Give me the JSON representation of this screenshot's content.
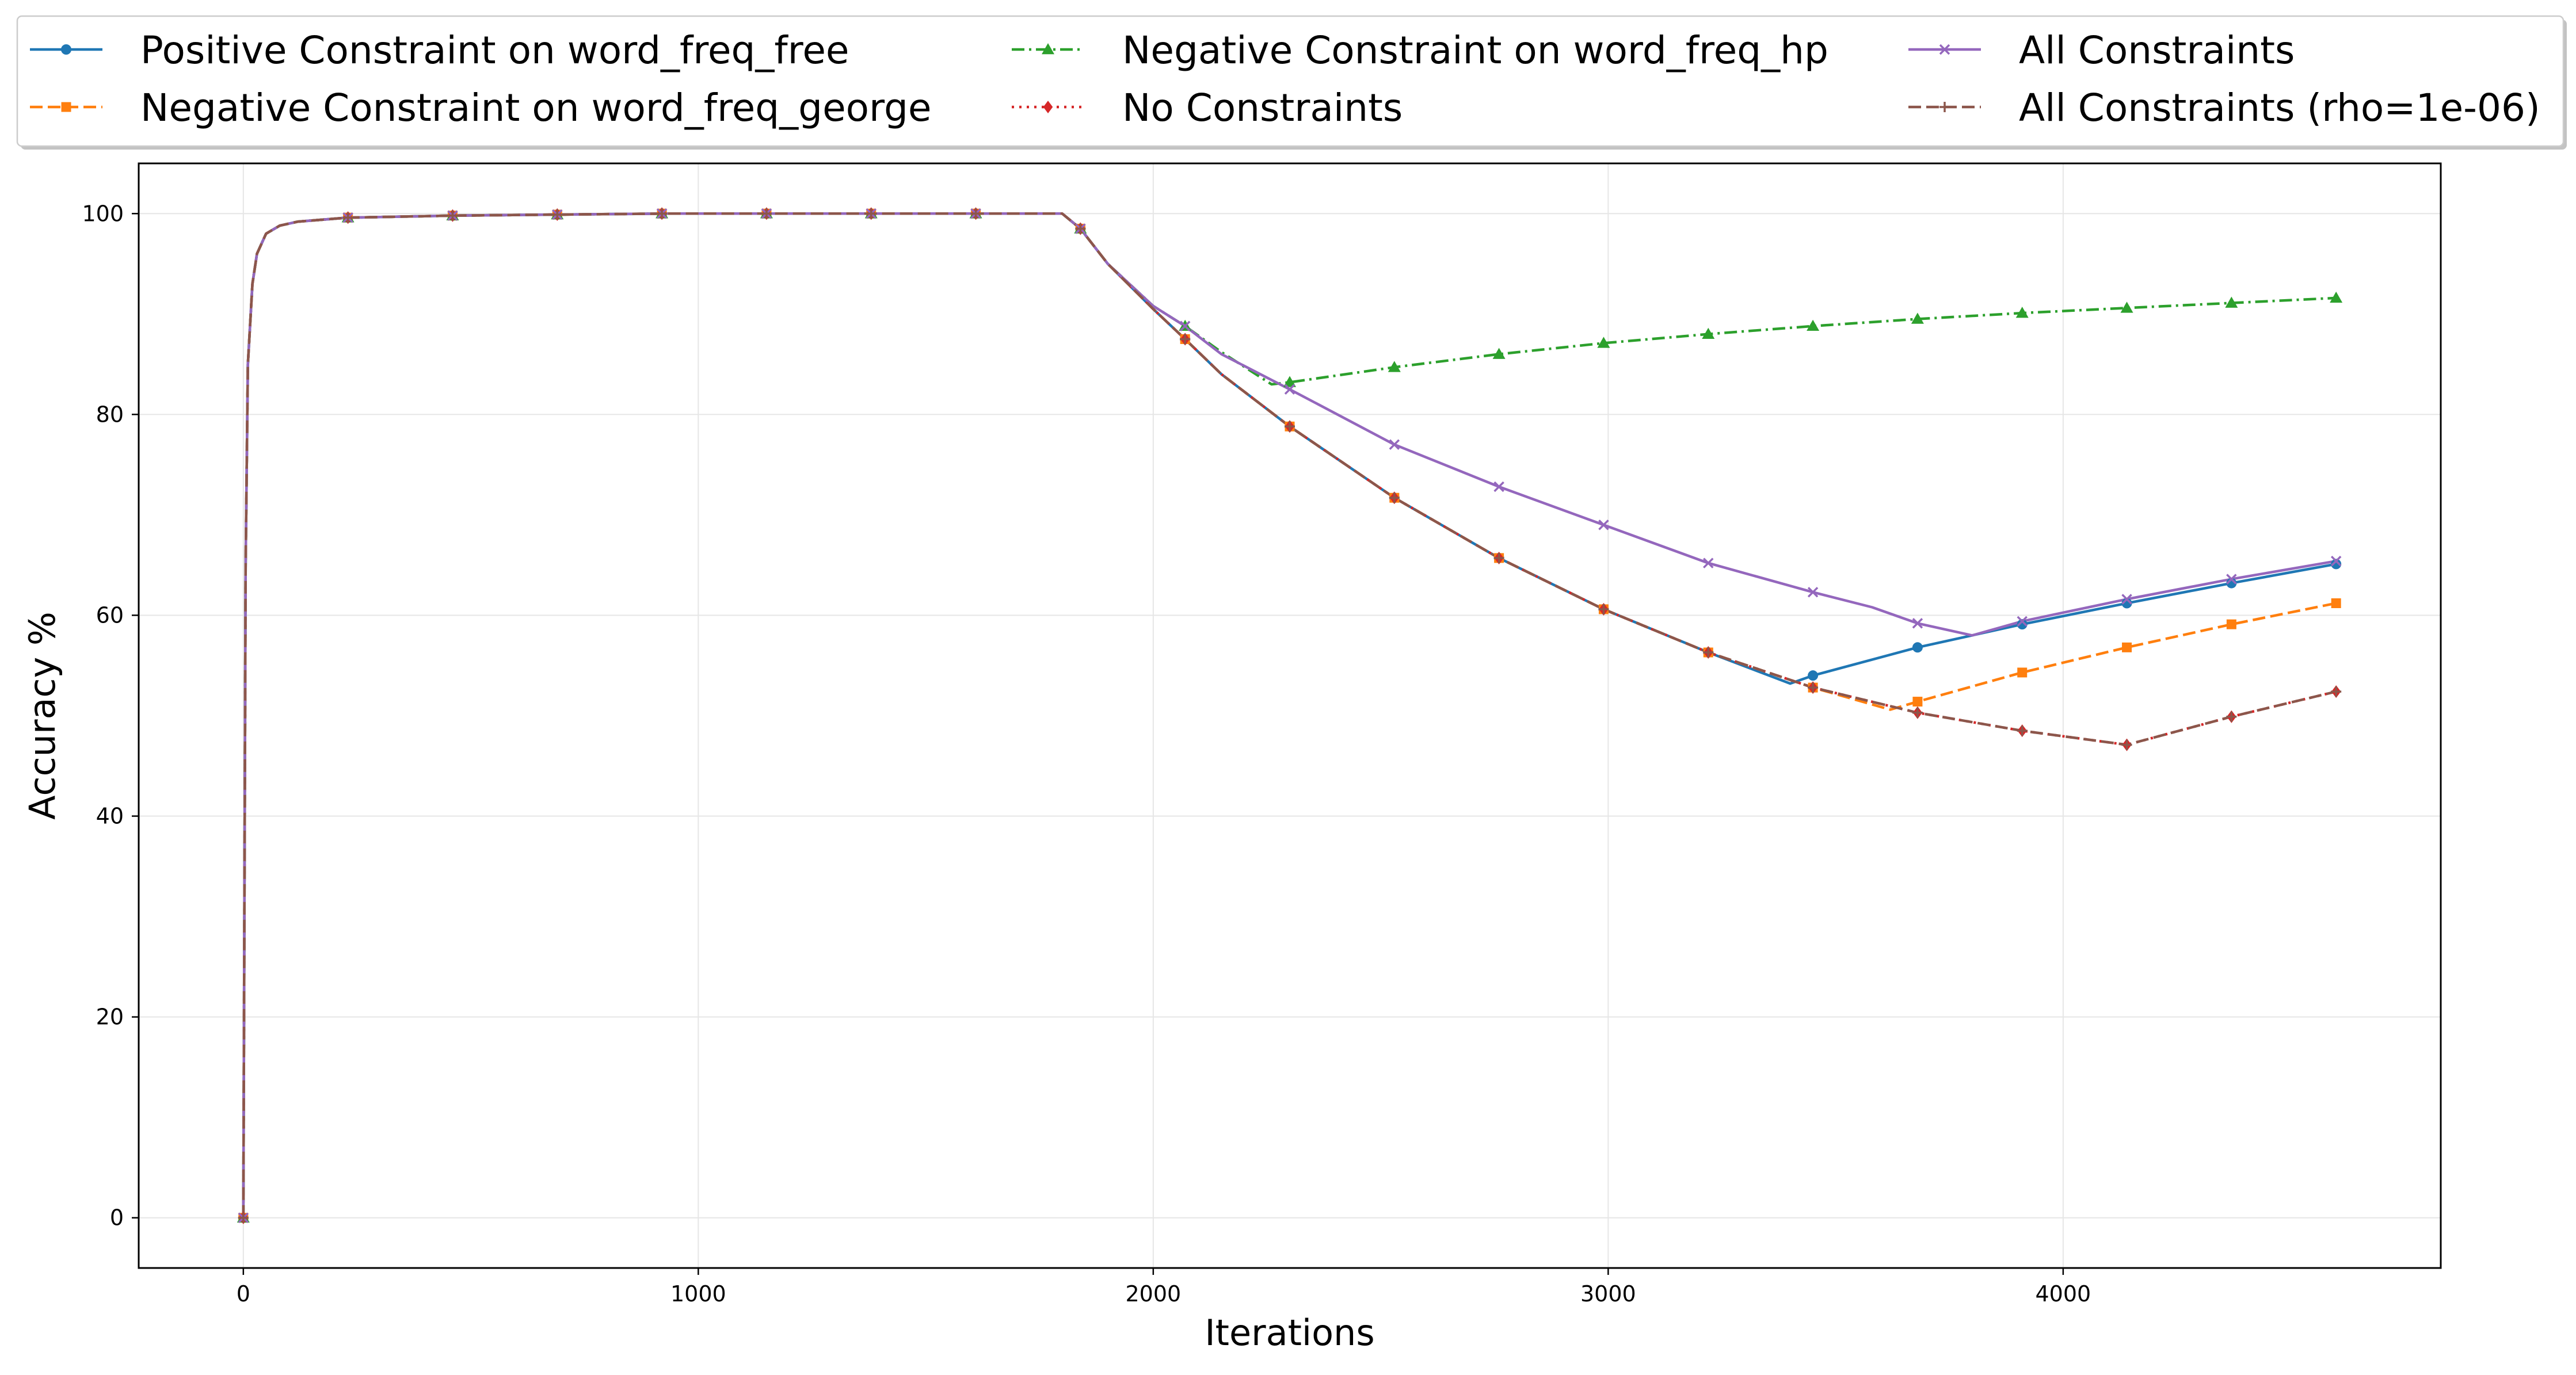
{
  "chart_data": {
    "type": "line",
    "xlabel": "Iterations",
    "ylabel": "Accuracy %",
    "xlim": [
      -230,
      4830
    ],
    "ylim": [
      -5,
      105
    ],
    "x_ticks": [
      0,
      1000,
      2000,
      3000,
      4000
    ],
    "y_ticks": [
      0,
      20,
      40,
      60,
      80,
      100
    ],
    "grid": true,
    "legend_placement": "top, outside plot, 4 columns",
    "series": [
      {
        "name": "Positive Constraint on word_freq_free",
        "color": "#1f77b4",
        "dash": "solid",
        "marker": "circle",
        "x": [
          0,
          5,
          10,
          20,
          30,
          50,
          80,
          120,
          230,
          460,
          690,
          920,
          1150,
          1380,
          1610,
          1800,
          1840,
          1900,
          2000,
          2070,
          2150,
          2300,
          2530,
          2760,
          2990,
          3220,
          3400,
          3450,
          3680,
          3910,
          4140,
          4370,
          4600
        ],
        "y": [
          0,
          65,
          85,
          93,
          96,
          98,
          98.8,
          99.2,
          99.6,
          99.8,
          99.9,
          100,
          100,
          100,
          100,
          100,
          98.5,
          95,
          90.5,
          87.5,
          84,
          78.8,
          71.7,
          65.7,
          60.6,
          56.3,
          53.2,
          54,
          56.8,
          59.1,
          61.2,
          63.2,
          65.1
        ]
      },
      {
        "name": "Negative Constraint on word_freq_george",
        "color": "#ff7f0e",
        "dash": "dashed",
        "marker": "square",
        "x": [
          0,
          5,
          10,
          20,
          30,
          50,
          80,
          120,
          230,
          460,
          690,
          920,
          1150,
          1380,
          1610,
          1800,
          1840,
          1900,
          2000,
          2070,
          2150,
          2300,
          2530,
          2760,
          2990,
          3220,
          3450,
          3620,
          3680,
          3910,
          4140,
          4370,
          4600
        ],
        "y": [
          0,
          65,
          85,
          93,
          96,
          98,
          98.8,
          99.2,
          99.6,
          99.8,
          99.9,
          100,
          100,
          100,
          100,
          100,
          98.5,
          95,
          90.5,
          87.5,
          84,
          78.8,
          71.7,
          65.7,
          60.6,
          56.3,
          52.8,
          50.6,
          51.4,
          54.3,
          56.8,
          59.1,
          61.2
        ]
      },
      {
        "name": "Negative Constraint on word_freq_hp",
        "color": "#2ca02c",
        "dash": "dashdot",
        "marker": "triangle",
        "x": [
          0,
          5,
          10,
          20,
          30,
          50,
          80,
          120,
          230,
          460,
          690,
          920,
          1150,
          1380,
          1610,
          1800,
          1840,
          1900,
          2000,
          2070,
          2150,
          2260,
          2300,
          2530,
          2760,
          2990,
          3220,
          3450,
          3680,
          3910,
          4140,
          4370,
          4600
        ],
        "y": [
          0,
          65,
          85,
          93,
          96,
          98,
          98.8,
          99.2,
          99.6,
          99.8,
          99.9,
          100,
          100,
          100,
          100,
          100,
          98.5,
          95,
          90.8,
          88.8,
          86.2,
          83,
          83.2,
          84.7,
          86,
          87.1,
          88,
          88.8,
          89.5,
          90.1,
          90.6,
          91.1,
          91.6
        ]
      },
      {
        "name": "No Constraints",
        "color": "#d62728",
        "dash": "dotted",
        "marker": "diamond",
        "x": [
          0,
          5,
          10,
          20,
          30,
          50,
          80,
          120,
          230,
          460,
          690,
          920,
          1150,
          1380,
          1610,
          1800,
          1840,
          1900,
          2000,
          2070,
          2150,
          2300,
          2530,
          2760,
          2990,
          3220,
          3450,
          3680,
          3910,
          4140,
          4370,
          4600
        ],
        "y": [
          0,
          65,
          85,
          93,
          96,
          98,
          98.8,
          99.2,
          99.6,
          99.8,
          99.9,
          100,
          100,
          100,
          100,
          100,
          98.5,
          95,
          90.5,
          87.5,
          84,
          78.8,
          71.7,
          65.7,
          60.6,
          56.3,
          52.8,
          50.3,
          48.5,
          47.1,
          49.9,
          52.4
        ]
      },
      {
        "name": "All Constraints",
        "color": "#9467bd",
        "dash": "solid",
        "marker": "x",
        "x": [
          0,
          5,
          10,
          20,
          30,
          50,
          80,
          120,
          230,
          460,
          690,
          920,
          1150,
          1380,
          1610,
          1800,
          1840,
          1900,
          2000,
          2070,
          2150,
          2300,
          2530,
          2760,
          2990,
          3220,
          3450,
          3580,
          3680,
          3800,
          3910,
          4140,
          4370,
          4600
        ],
        "y": [
          0,
          65,
          85,
          93,
          96,
          98,
          98.8,
          99.2,
          99.6,
          99.8,
          99.9,
          100,
          100,
          100,
          100,
          100,
          98.5,
          95,
          90.8,
          88.8,
          86,
          82.5,
          77,
          72.8,
          69,
          65.2,
          62.3,
          60.8,
          59.2,
          58,
          59.4,
          61.6,
          63.6,
          65.4
        ]
      },
      {
        "name": "All Constraints (rho=1e-06)",
        "color": "#8c564b",
        "dash": "dashed",
        "marker": "plus",
        "x": [
          0,
          5,
          10,
          20,
          30,
          50,
          80,
          120,
          230,
          460,
          690,
          920,
          1150,
          1380,
          1610,
          1800,
          1840,
          1900,
          2000,
          2070,
          2150,
          2300,
          2530,
          2760,
          2990,
          3220,
          3450,
          3680,
          3910,
          4140,
          4370,
          4600
        ],
        "y": [
          0,
          65,
          85,
          93,
          96,
          98,
          98.8,
          99.2,
          99.6,
          99.8,
          99.9,
          100,
          100,
          100,
          100,
          100,
          98.5,
          95,
          90.5,
          87.5,
          84,
          78.8,
          71.7,
          65.7,
          60.6,
          56.3,
          52.8,
          50.3,
          48.5,
          47.1,
          49.9,
          52.4
        ]
      }
    ]
  }
}
